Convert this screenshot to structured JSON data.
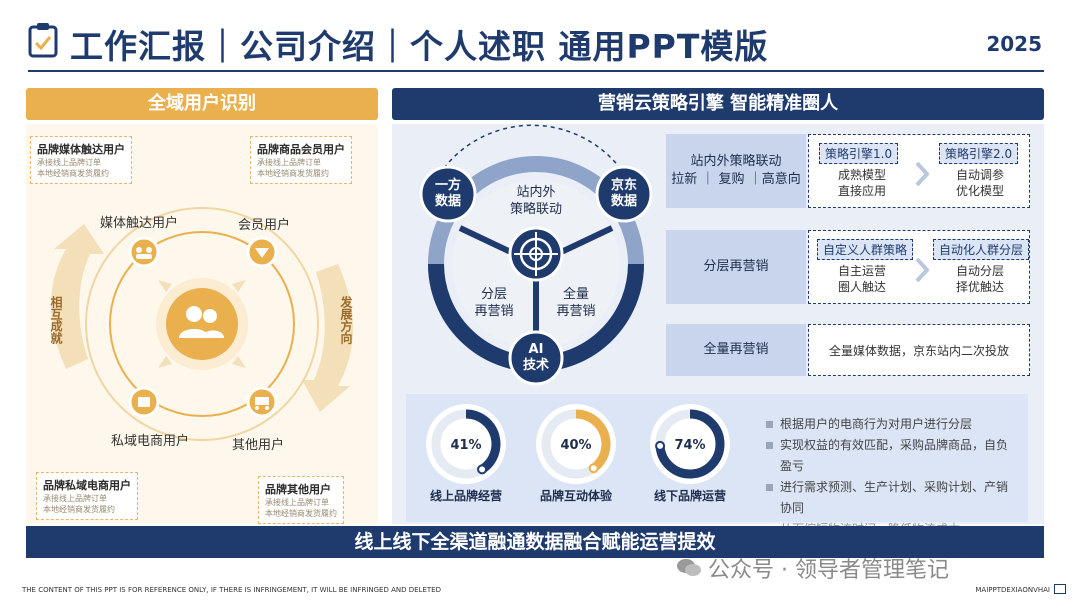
{
  "header": {
    "title": "工作汇报｜公司介绍｜个人述职 通用PPT模版",
    "year": "2025"
  },
  "left": {
    "banner": "全域用户识别",
    "callouts": [
      {
        "title": "品牌媒体触达用户",
        "lines": [
          "承接线上品牌订单",
          "本地经销商发货履约"
        ]
      },
      {
        "title": "品牌商品会员用户",
        "lines": [
          "承接线上品牌订单",
          "本地经销商发货履约"
        ]
      },
      {
        "title": "品牌私域电商用户",
        "lines": [
          "承接线上品牌订单",
          "本地经销商发货履约"
        ]
      },
      {
        "title": "品牌其他用户",
        "lines": [
          "承接线上品牌订单",
          "本地经销商发货履约"
        ]
      }
    ],
    "nodes": {
      "media": "媒体触达用户",
      "member": "会员用户",
      "private": "私域电商用户",
      "other": "其他用户"
    },
    "arrows": {
      "left": "相互成就",
      "right": "发展方向"
    },
    "colors": {
      "accent": "#e9b04d",
      "panel": "#fdf7ec"
    }
  },
  "right": {
    "banner": "营销云策略引擎 智能精准圈人",
    "ring": {
      "center": [
        "站内外",
        "策略联动"
      ],
      "bottom_left": [
        "分层",
        "再营销"
      ],
      "bottom_right": [
        "全量",
        "再营销"
      ],
      "badges": {
        "left": [
          "一方",
          "数据"
        ],
        "right": [
          "京东",
          "数据"
        ],
        "bottom": [
          "AI",
          "技术"
        ]
      }
    },
    "strategies": [
      {
        "label": [
          "站内外策略联动",
          "拉新 ｜ 复购 ｜高意向"
        ],
        "tag1": "策略引擎1.0",
        "sub1": [
          "成熟模型",
          "直接应用"
        ],
        "tag2": "策略引擎2.0",
        "sub2": [
          "自动调参",
          "优化模型"
        ]
      },
      {
        "label": [
          "分层再营销"
        ],
        "tag1": "自定义人群策略",
        "sub1": [
          "自主运营",
          "圈人触达"
        ],
        "tag2": "自动化人群分层",
        "sub2": [
          "自动分层",
          "择优触达"
        ]
      },
      {
        "label": [
          "全量再营销"
        ],
        "text": "全量媒体数据，京东站内二次投放"
      }
    ],
    "kpis": [
      {
        "value": 41,
        "pct": "41%",
        "label": "线上品牌经营",
        "color": "#1f3b6e"
      },
      {
        "value": 40,
        "pct": "40%",
        "label": "品牌互动体验",
        "color": "#e9b04d"
      },
      {
        "value": 74,
        "pct": "74%",
        "label": "线下品牌运营",
        "color": "#1f3b6e"
      }
    ],
    "bullets": [
      "根据用户的电商行为对用户进行分层",
      "实现权益的有效匹配，采购品牌商品，自负盈亏",
      "进行需求预测、生产计划、采购计划、产销协同",
      "从而缩短物流时间、降低物流成本"
    ]
  },
  "bottom_bar": "线上线下全渠道融通数据融合赋能运营提效",
  "watermark": "公众号 · 领导者管理笔记",
  "footer": {
    "left": "THE CONTENT OF THIS PPT IS FOR REFERENCE ONLY, IF THERE IS INFRINGEMENT, IT WILL BE INFRINGED AND DELETED",
    "right": "MAIPPTDEXIAONVHAI"
  }
}
